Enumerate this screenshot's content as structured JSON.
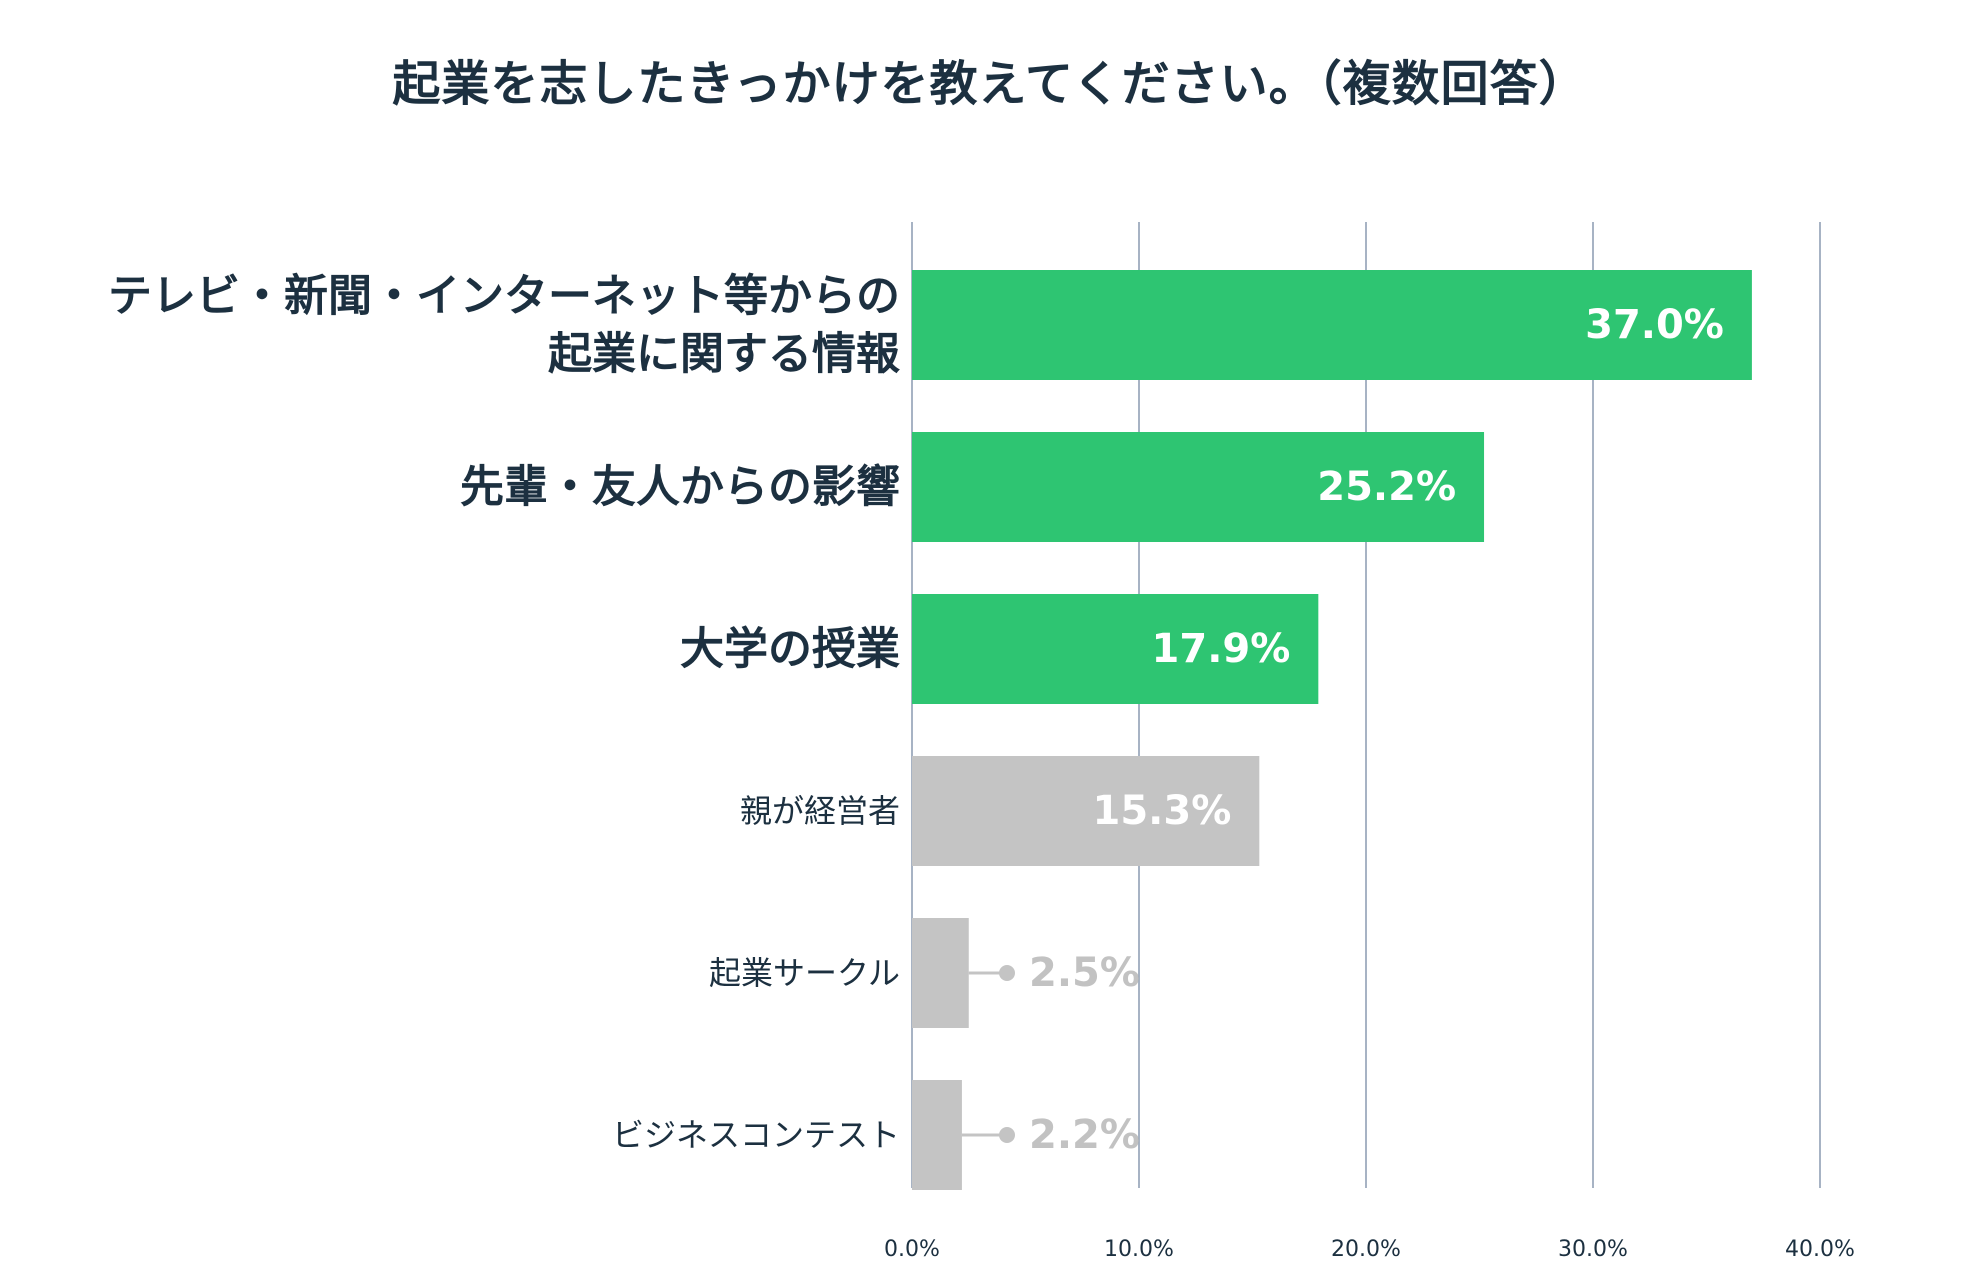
{
  "chart_data": {
    "type": "bar",
    "orientation": "horizontal",
    "title": "起業を志したきっかけを教えてください。（複数回答）",
    "categories": [
      [
        "テレビ・新聞・インターネット等からの",
        "起業に関する情報"
      ],
      [
        "先輩・友人からの影響"
      ],
      [
        "大学の授業"
      ],
      [
        "親が経営者"
      ],
      [
        "起業サークル"
      ],
      [
        "ビジネスコンテスト"
      ]
    ],
    "values": [
      37.0,
      25.2,
      17.9,
      15.3,
      2.5,
      2.2
    ],
    "value_labels": [
      "37.0%",
      "25.2%",
      "17.9%",
      "15.3%",
      "2.5%",
      "2.2%"
    ],
    "highlighted": [
      true,
      true,
      true,
      false,
      false,
      false
    ],
    "xlim": [
      0,
      40
    ],
    "xticks": [
      0,
      10,
      20,
      30,
      40
    ],
    "xtick_labels": [
      "0.0%",
      "10.0%",
      "20.0%",
      "30.0%",
      "40.0%"
    ],
    "grid": true,
    "colors": {
      "highlight": "#2ec572",
      "muted": "#c4c4c4",
      "grid": "#8a9ab0",
      "text": "#1c3040",
      "muted_text": "#c2c2c2"
    }
  }
}
